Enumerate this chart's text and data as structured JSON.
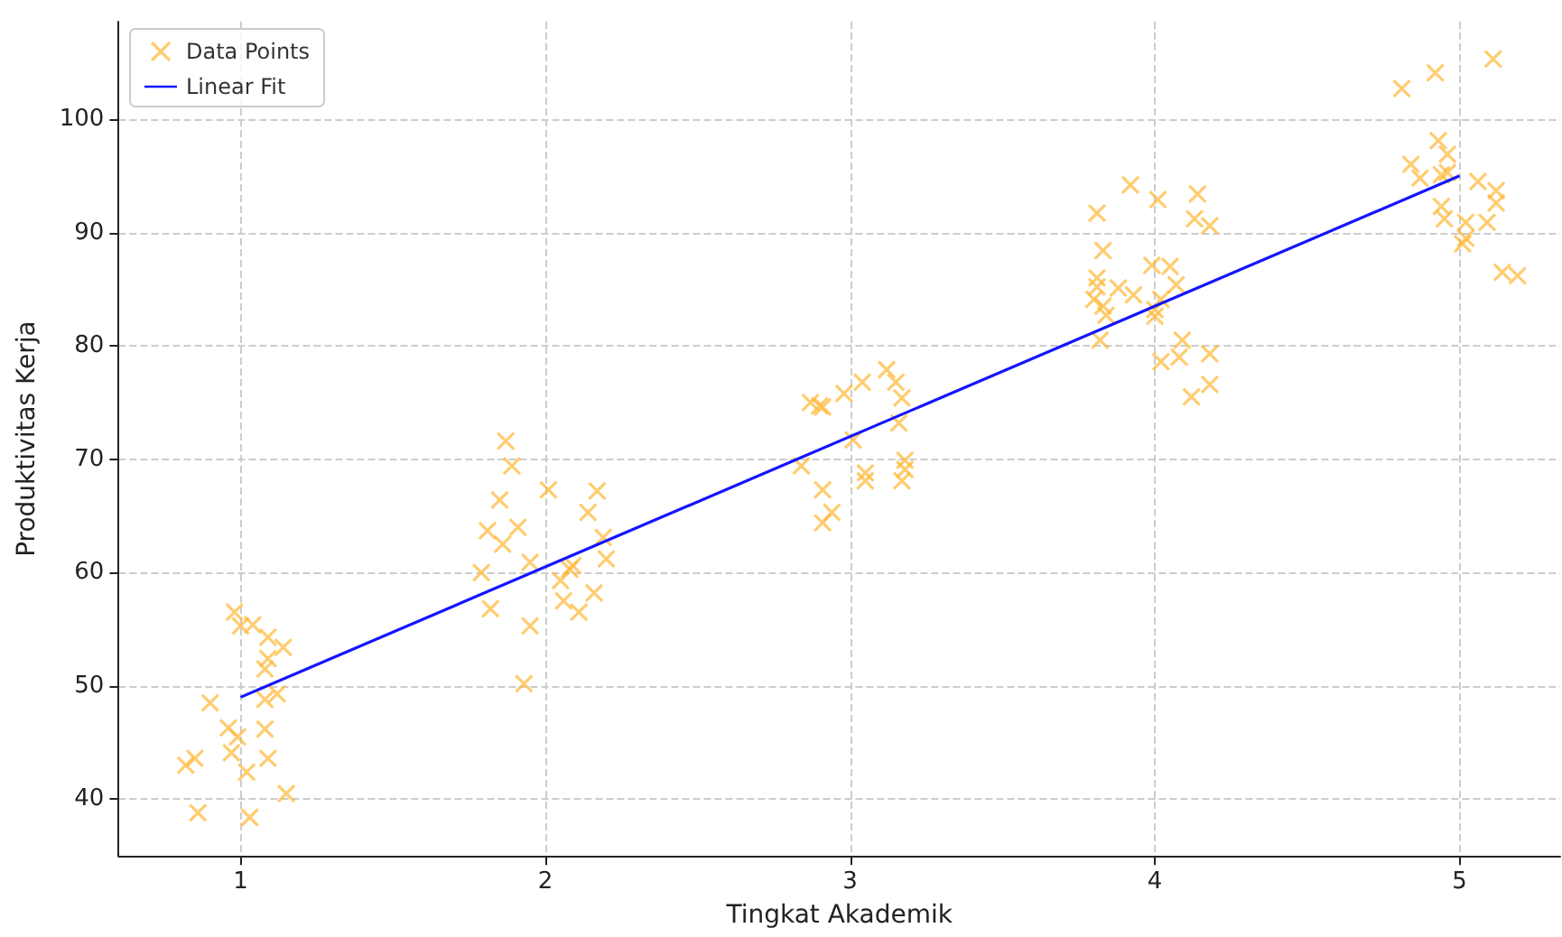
{
  "chart_data": {
    "type": "scatter",
    "xlabel": "Tingkat Akademik",
    "ylabel": "Produktivitas Kerja",
    "xlim": [
      0.6,
      5.33
    ],
    "ylim": [
      35,
      108.6
    ],
    "xticks": [
      1,
      2,
      3,
      4,
      5
    ],
    "yticks": [
      40,
      50,
      60,
      70,
      80,
      90,
      100
    ],
    "grid": true,
    "legend": "top left",
    "series": [
      {
        "name": "Data Points",
        "marker": "cross",
        "color": "#ffb732",
        "x": [
          0.98,
          1.0,
          1.04,
          1.09,
          1.14,
          1.09,
          1.08,
          0.9,
          1.08,
          1.12,
          0.96,
          0.99,
          1.08,
          0.97,
          0.85,
          0.82,
          1.09,
          1.02,
          1.15,
          0.86,
          1.03,
          1.87,
          1.89,
          1.85,
          2.01,
          2.17,
          1.81,
          1.91,
          1.86,
          2.14,
          2.19,
          1.95,
          1.79,
          2.08,
          2.09,
          2.2,
          2.05,
          2.06,
          2.11,
          2.16,
          1.82,
          1.95,
          1.93,
          2.87,
          2.9,
          2.91,
          2.98,
          3.04,
          3.12,
          3.15,
          3.17,
          3.16,
          3.01,
          2.84,
          3.05,
          3.05,
          3.18,
          3.18,
          3.17,
          2.91,
          2.94,
          2.91,
          3.92,
          3.81,
          4.01,
          4.14,
          4.13,
          4.18,
          3.83,
          3.99,
          4.05,
          4.07,
          3.81,
          3.81,
          3.88,
          3.93,
          3.8,
          3.83,
          3.84,
          4.02,
          4.0,
          4.0,
          3.82,
          4.09,
          4.08,
          4.18,
          4.02,
          4.18,
          4.12,
          4.92,
          5.11,
          4.81,
          4.93,
          4.96,
          4.84,
          4.87,
          4.94,
          4.96,
          5.06,
          5.12,
          5.12,
          4.94,
          4.95,
          5.02,
          5.09,
          5.01,
          5.02,
          5.14,
          5.19
        ],
        "values": [
          56.5,
          55.3,
          55.4,
          54.3,
          53.4,
          52.4,
          51.5,
          48.5,
          48.8,
          49.3,
          46.3,
          45.5,
          46.2,
          44.1,
          43.6,
          43.0,
          43.6,
          42.4,
          40.5,
          38.8,
          38.4,
          71.6,
          69.4,
          66.4,
          67.3,
          67.2,
          63.7,
          64.0,
          62.5,
          65.3,
          63.1,
          60.9,
          60.0,
          60.3,
          60.6,
          61.2,
          59.3,
          57.5,
          56.5,
          58.2,
          56.8,
          55.3,
          50.2,
          75.0,
          74.7,
          74.6,
          75.8,
          76.8,
          77.9,
          76.8,
          75.4,
          73.2,
          71.7,
          69.4,
          68.8,
          68.1,
          69.9,
          69.1,
          68.1,
          67.3,
          65.3,
          64.4,
          94.2,
          91.7,
          92.9,
          93.4,
          91.2,
          90.6,
          88.4,
          87.1,
          87.0,
          85.4,
          86.0,
          85.2,
          85.1,
          84.5,
          84.1,
          83.5,
          82.7,
          84.1,
          83.2,
          82.6,
          80.5,
          80.5,
          79.0,
          79.3,
          78.6,
          76.6,
          75.5,
          104.1,
          105.3,
          102.7,
          98.1,
          96.9,
          96.0,
          94.8,
          95.1,
          95.3,
          94.5,
          93.7,
          92.6,
          92.3,
          91.2,
          90.9,
          90.9,
          89.0,
          89.5,
          86.5,
          86.2
        ]
      },
      {
        "name": "Linear Fit",
        "type": "line",
        "marker": "none",
        "line_style": "solid",
        "color": "#1414ff",
        "x": [
          1,
          5
        ],
        "values": [
          49.0,
          95.0
        ]
      }
    ]
  }
}
